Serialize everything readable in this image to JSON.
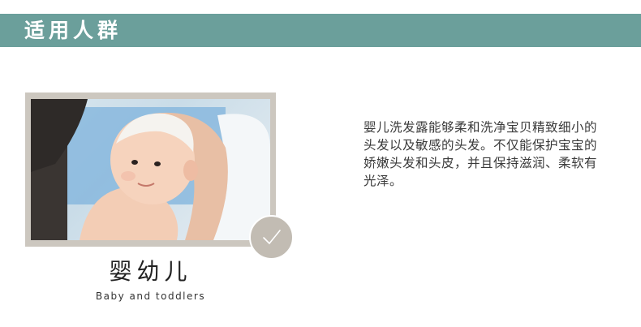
{
  "header": {
    "title": "适用人群"
  },
  "audience": {
    "label_cn": "婴幼儿",
    "label_en": "Baby and toddlers",
    "photo_icon": "baby-bath-photo",
    "badge_icon": "check-icon"
  },
  "description": "婴儿洗发露能够柔和洗净宝贝精致细小的头发以及敏感的头发。不仅能保护宝宝的娇嫩头发和头皮，并且保持滋润、柔软有光泽。",
  "colors": {
    "header_bar": "#6b9f9b",
    "frame": "#ccc7bf",
    "badge": "#c2bcb3"
  }
}
